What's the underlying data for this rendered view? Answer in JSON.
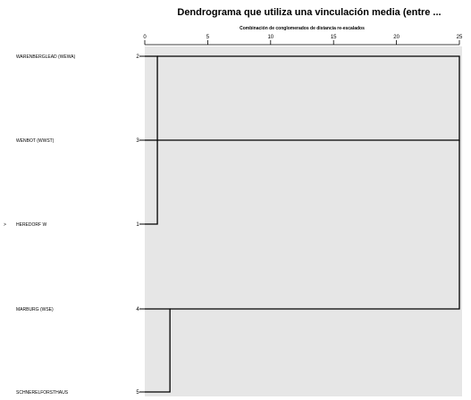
{
  "chart_data": {
    "type": "dendrogram",
    "title": "Dendrograma que utiliza una vinculación media (entre ...",
    "subtitle": "Combinación de conglomerados de distancia re-escalados",
    "xlim": [
      0,
      25
    ],
    "x_ticks": [
      0,
      5,
      10,
      15,
      20,
      25
    ],
    "leaves": [
      {
        "label": "WARENBERGLEAD (WEWA)",
        "num": "2",
        "marker": ""
      },
      {
        "label": "WENBOT (WWST)",
        "num": "3",
        "marker": ""
      },
      {
        "label": "HEREDORF W",
        "num": "1",
        "marker": ">"
      },
      {
        "label": "MARBURG (WSE)",
        "num": "4",
        "marker": ""
      },
      {
        "label": "SCHNERELFORSTHAUS",
        "num": "5",
        "marker": ""
      }
    ],
    "merges": [
      {
        "a": 0,
        "b": 2,
        "height": 1
      },
      {
        "a": 3,
        "b": 4,
        "height": 2
      },
      {
        "a": 1,
        "b": 0,
        "height": 25
      },
      {
        "a": 3,
        "b": 1,
        "height": 25
      }
    ],
    "colors": {
      "plot_bg": "#e6e6e6",
      "line": "#000000"
    }
  }
}
